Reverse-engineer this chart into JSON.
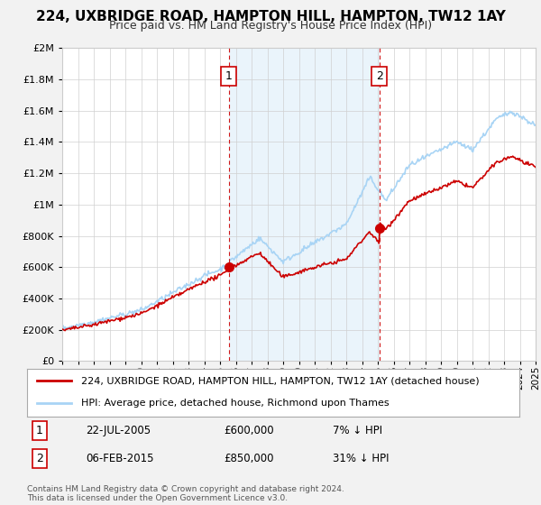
{
  "title": "224, UXBRIDGE ROAD, HAMPTON HILL, HAMPTON, TW12 1AY",
  "subtitle": "Price paid vs. HM Land Registry's House Price Index (HPI)",
  "legend_line1": "224, UXBRIDGE ROAD, HAMPTON HILL, HAMPTON, TW12 1AY (detached house)",
  "legend_line2": "HPI: Average price, detached house, Richmond upon Thames",
  "annotation1_date": "22-JUL-2005",
  "annotation1_price": "£600,000",
  "annotation1_hpi": "7% ↓ HPI",
  "annotation2_date": "06-FEB-2015",
  "annotation2_price": "£850,000",
  "annotation2_hpi": "31% ↓ HPI",
  "footnote": "Contains HM Land Registry data © Crown copyright and database right 2024.\nThis data is licensed under the Open Government Licence v3.0.",
  "hpi_color": "#a8d4f5",
  "price_color": "#cc0000",
  "vline_color": "#cc0000",
  "shade_color": "#ddeeff",
  "background_color": "#f2f2f2",
  "plot_background": "#ffffff",
  "ylim": [
    0,
    2000000
  ],
  "yticks": [
    0,
    200000,
    400000,
    600000,
    800000,
    1000000,
    1200000,
    1400000,
    1600000,
    1800000,
    2000000
  ],
  "sale1_x": 2005.55,
  "sale1_y": 600000,
  "sale2_x": 2015.09,
  "sale2_y": 850000,
  "xmin": 1995,
  "xmax": 2025
}
